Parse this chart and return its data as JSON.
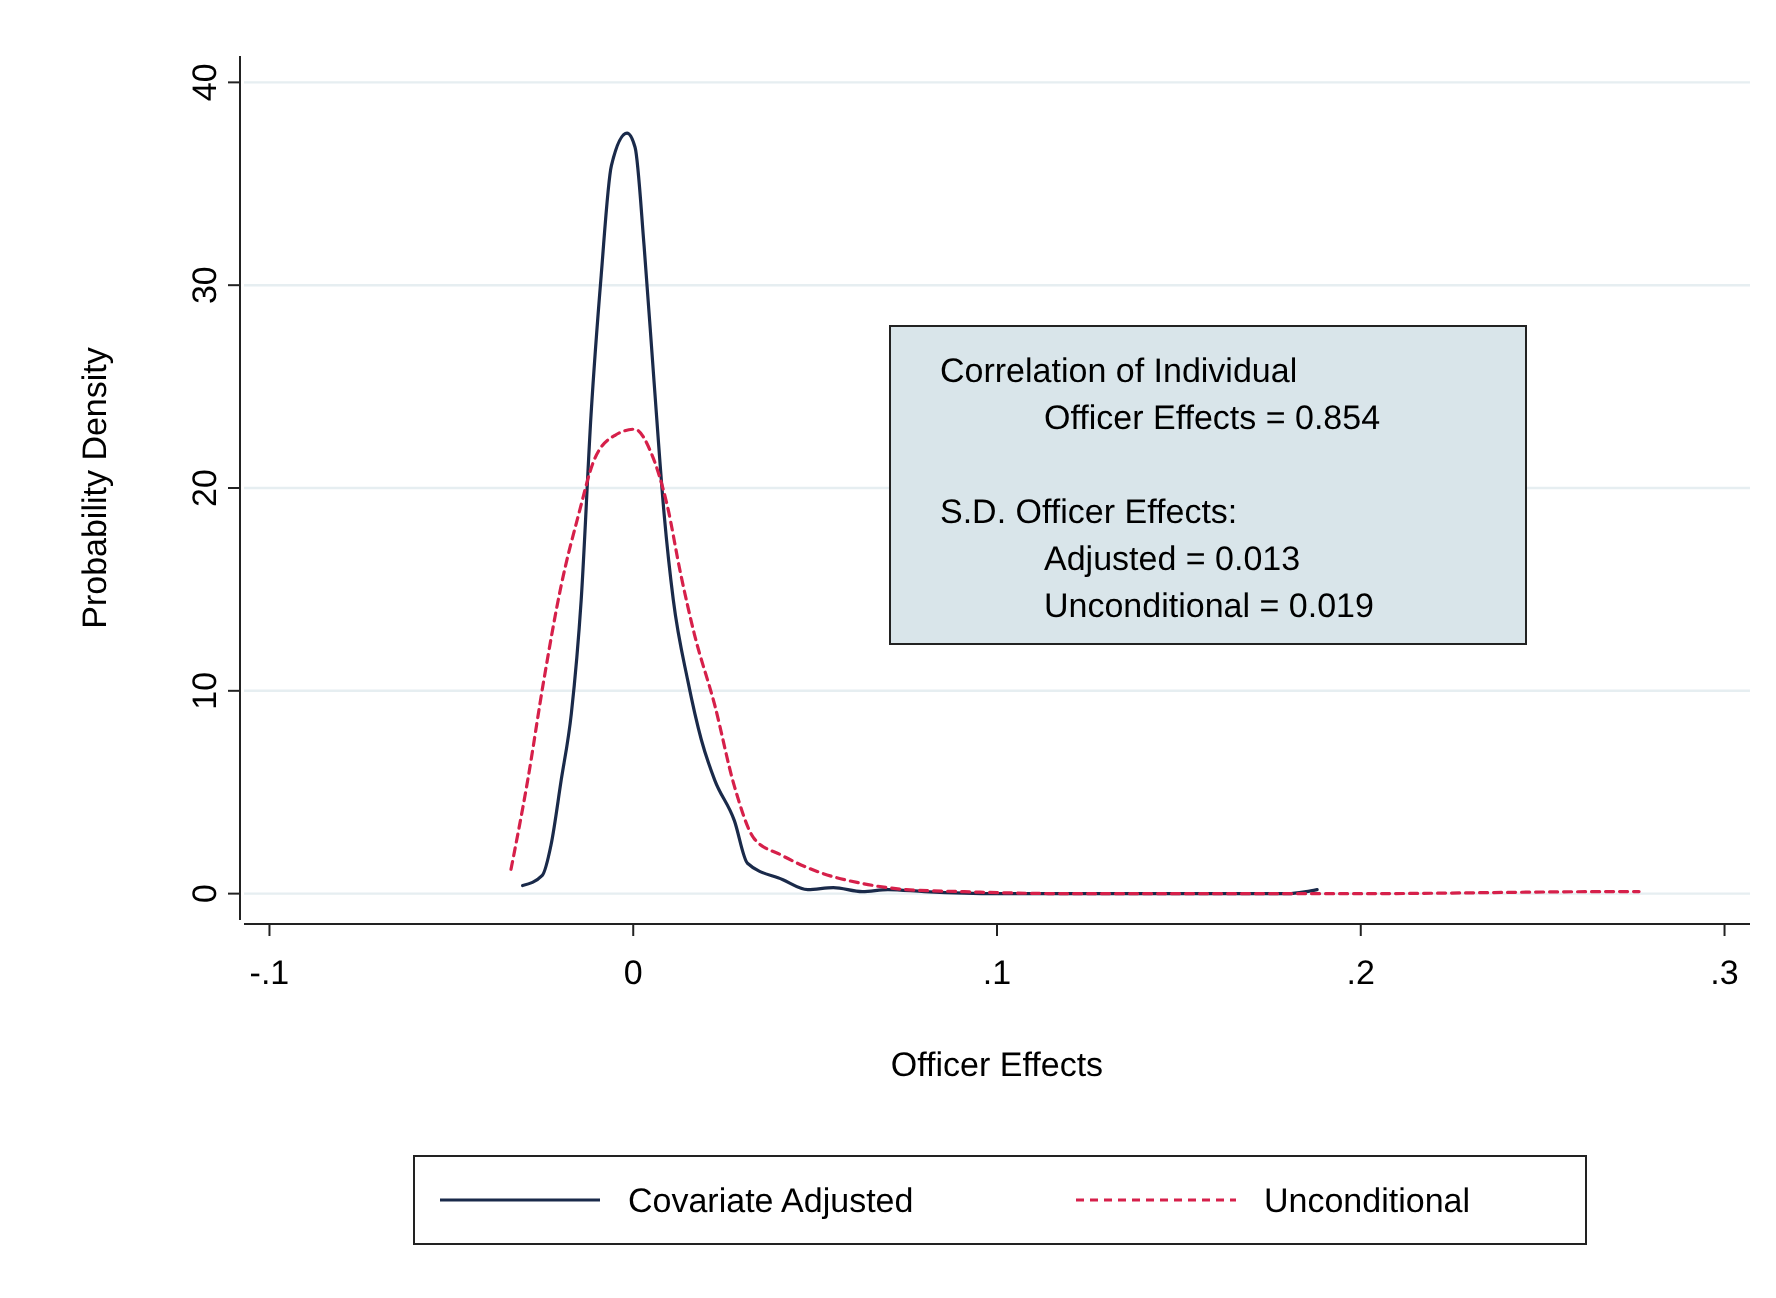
{
  "chart_data": {
    "type": "line",
    "xlabel": "Officer Effects",
    "ylabel": "Probability Density",
    "xlim": [
      -0.107,
      0.307
    ],
    "xticks": [
      {
        "value": -0.1,
        "label": "-.1"
      },
      0,
      {
        "value": 0.1,
        "label": ".1"
      },
      {
        "value": 0.2,
        "label": ".2"
      },
      {
        "value": 0.3,
        "label": ".3"
      }
    ],
    "ylim": [
      -1.3,
      41.3
    ],
    "yticks": [
      0,
      10,
      20,
      30,
      40
    ],
    "grid": "y",
    "legend": "bottom",
    "marker": "none",
    "annotations": [
      "Correlation of Individual\nOfficer Effects = 0.854",
      "S.D. Officer Effects:\nAdjusted = 0.013\nUnconditional = 0.019"
    ],
    "series": [
      {
        "name": "Covariate Adjusted",
        "color": "#1a2a4a",
        "line_style": "solid",
        "x": [
          -0.0304,
          -0.025,
          -0.0226,
          -0.0198,
          -0.017,
          -0.0143,
          -0.0116,
          -0.0088,
          -0.006,
          -0.0017,
          0.0005,
          0.003,
          0.0057,
          0.0085,
          0.011,
          0.015,
          0.0187,
          0.0224,
          0.0278,
          0.0314,
          0.041,
          0.048,
          0.055,
          0.063,
          0.07,
          0.08,
          0.1,
          0.14,
          0.18,
          0.185,
          0.188
        ],
        "values": [
          0.4,
          0.9,
          2.4,
          5.6,
          8.9,
          14.5,
          23.6,
          30.5,
          35.9,
          37.5,
          36.8,
          31.9,
          25.3,
          18.7,
          14.5,
          10.5,
          7.6,
          5.6,
          3.6,
          1.5,
          0.7,
          0.2,
          0.3,
          0.1,
          0.2,
          0.1,
          0,
          0,
          0,
          0.1,
          0.2
        ]
      },
      {
        "name": "Unconditional",
        "color": "#d6204a",
        "line_style": "dashed",
        "x": [
          -0.0336,
          -0.029,
          -0.0246,
          -0.0198,
          -0.015,
          -0.0107,
          -0.005,
          0.0004,
          0.005,
          0.0094,
          0.013,
          0.0168,
          0.0224,
          0.0278,
          0.0333,
          0.0407,
          0.052,
          0.063,
          0.075,
          0.09,
          0.12,
          0.2,
          0.27,
          0.2765
        ],
        "values": [
          1.2,
          5.6,
          10.5,
          15.2,
          18.7,
          21.4,
          22.6,
          22.9,
          21.7,
          19.1,
          15.8,
          12.8,
          9.3,
          5.3,
          2.7,
          1.9,
          1.0,
          0.5,
          0.2,
          0.1,
          0,
          0,
          0.1,
          0.1
        ]
      }
    ]
  }
}
